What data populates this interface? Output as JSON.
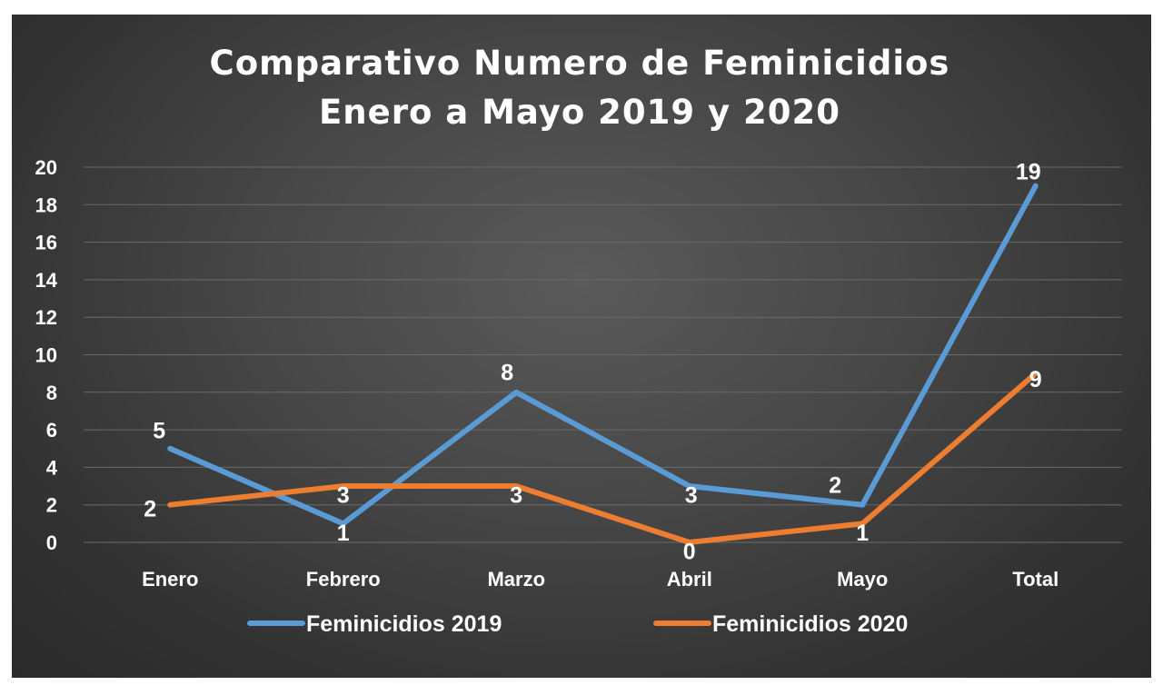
{
  "chart_data": {
    "type": "line",
    "title": [
      "Comparativo Numero de Feminicidios",
      "Enero a Mayo 2019 y 2020"
    ],
    "categories": [
      "Enero",
      "Febrero",
      "Marzo",
      "Abril",
      "Mayo",
      "Total"
    ],
    "y_ticks": [
      "0",
      "2",
      "4",
      "6",
      "8",
      "10",
      "12",
      "14",
      "16",
      "18",
      "20"
    ],
    "ylim": [
      0,
      20
    ],
    "grid": true,
    "legend_position": "bottom",
    "series": [
      {
        "name": "Feminicidios 2019",
        "color": "#5b9bd5",
        "values": [
          5,
          1,
          8,
          3,
          2,
          19
        ],
        "labels": [
          "5",
          "1",
          "8",
          "3",
          "2",
          "19"
        ]
      },
      {
        "name": "Feminicidios 2020",
        "color": "#ed7d31",
        "values": [
          2,
          3,
          3,
          0,
          1,
          9
        ],
        "labels": [
          "2",
          "3",
          "3",
          "0",
          "1",
          "9"
        ]
      }
    ]
  }
}
